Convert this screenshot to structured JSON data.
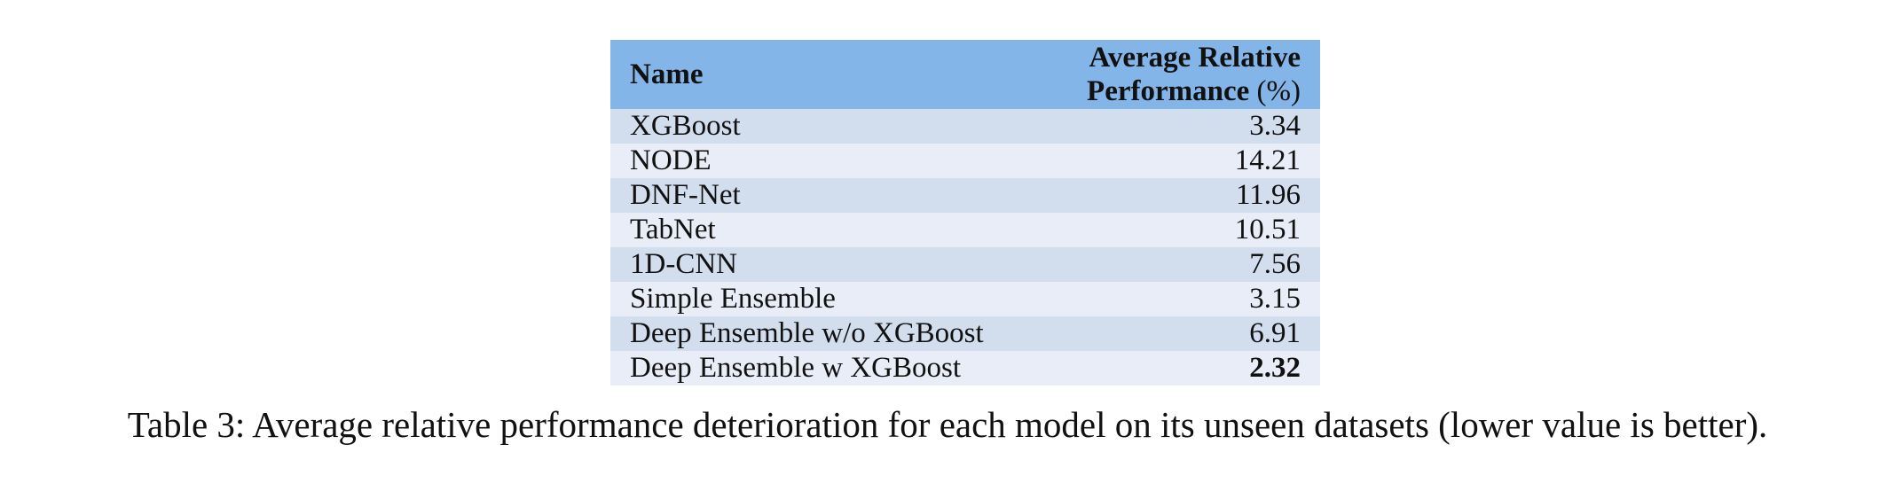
{
  "table": {
    "header": {
      "name": "Name",
      "value_line1": "Average Relative",
      "value_line2": "Performance",
      "value_unit": "(%)"
    },
    "rows": [
      {
        "name": "XGBoost",
        "value": "3.34",
        "bold": false
      },
      {
        "name": "NODE",
        "value": "14.21",
        "bold": false
      },
      {
        "name": "DNF-Net",
        "value": "11.96",
        "bold": false
      },
      {
        "name": "TabNet",
        "value": "10.51",
        "bold": false
      },
      {
        "name": "1D-CNN",
        "value": "7.56",
        "bold": false
      },
      {
        "name": "Simple Ensemble",
        "value": "3.15",
        "bold": false
      },
      {
        "name": "Deep Ensemble w/o XGBoost",
        "value": "6.91",
        "bold": false
      },
      {
        "name": "Deep Ensemble w XGBoost",
        "value": "2.32",
        "bold": true
      }
    ],
    "colors": {
      "header_bg": "#83b5e8",
      "row_odd_bg": "#d2ddee",
      "row_even_bg": "#e9edf7"
    }
  },
  "caption": "Table 3: Average relative performance deterioration for each model on its unseen datasets (lower value is better)."
}
